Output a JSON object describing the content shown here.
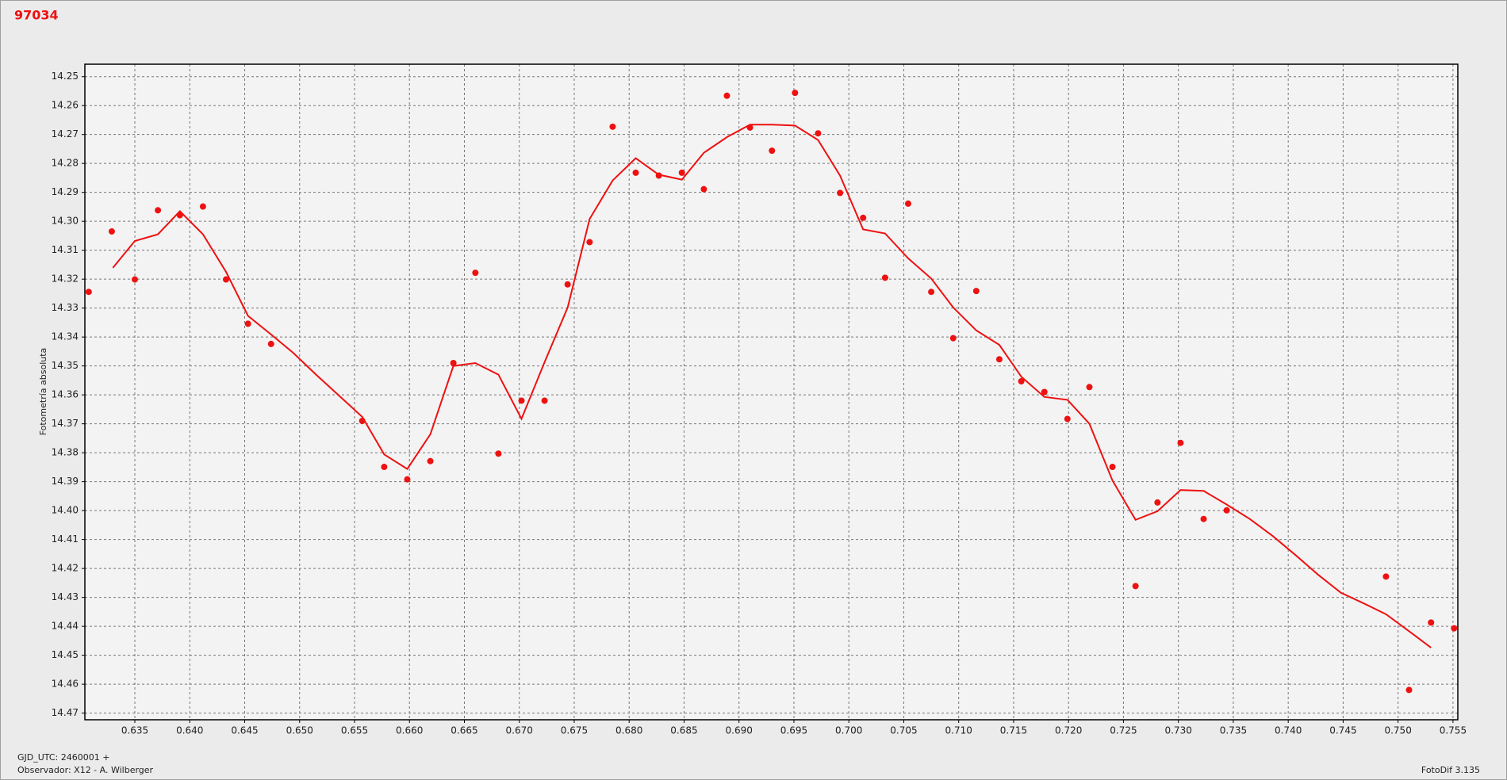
{
  "chart_data": {
    "type": "scatter",
    "title": "97034",
    "ylabel": "Fotometría absoluta",
    "footer": [
      "GJD_UTC: 2460001 +",
      "Observador: X12 - A. Wilberger"
    ],
    "version": "FotoDif 3.135",
    "invert_y": true,
    "grid": true,
    "xlim": [
      0.63045,
      0.75544
    ],
    "ylim": [
      14.2457,
      14.4723
    ],
    "xticks": [
      0.635,
      {
        "value": 0.64,
        "label": "0.640"
      },
      0.645,
      {
        "value": 0.65,
        "label": "0.650"
      },
      0.655,
      {
        "value": 0.66,
        "label": "0.660"
      },
      0.665,
      {
        "value": 0.67,
        "label": "0.670"
      },
      0.675,
      {
        "value": 0.68,
        "label": "0.680"
      },
      0.685,
      {
        "value": 0.69,
        "label": "0.690"
      },
      0.695,
      {
        "value": 0.7,
        "label": "0.700"
      },
      0.705,
      {
        "value": 0.71,
        "label": "0.710"
      },
      0.715,
      {
        "value": 0.72,
        "label": "0.720"
      },
      0.725,
      {
        "value": 0.73,
        "label": "0.730"
      },
      0.735,
      {
        "value": 0.74,
        "label": "0.740"
      },
      0.745,
      {
        "value": 0.75,
        "label": "0.750"
      },
      0.755
    ],
    "yticks": [
      14.25,
      14.26,
      14.27,
      14.28,
      14.29,
      {
        "value": 14.3,
        "label": "14.30"
      },
      14.31,
      14.32,
      14.33,
      14.34,
      14.35,
      14.36,
      14.37,
      14.38,
      14.39,
      {
        "value": 14.4,
        "label": "14.40"
      },
      14.41,
      14.42,
      14.43,
      14.44,
      14.45,
      14.46,
      14.47
    ],
    "series": [
      {
        "style": "markers",
        "color": "#ee1111",
        "x": [
          0.6308,
          0.6329,
          0.635,
          0.6371,
          0.6391,
          0.6412,
          0.6433,
          0.6453,
          0.6474,
          0.6557,
          0.6577,
          0.6598,
          0.6619,
          0.664,
          0.666,
          0.6681,
          0.6702,
          0.6723,
          0.6744,
          0.6764,
          0.6785,
          0.6806,
          0.6827,
          0.6848,
          0.6868,
          0.6889,
          0.691,
          0.693,
          0.6951,
          0.6972,
          0.6992,
          0.7013,
          0.7033,
          0.7054,
          0.7075,
          0.7095,
          0.7116,
          0.7137,
          0.7157,
          0.7178,
          0.7199,
          0.7219,
          0.724,
          0.7261,
          0.7281,
          0.7302,
          0.7323,
          0.7344,
          0.7489,
          0.751,
          0.753,
          0.7551
        ],
        "values": [
          14.3244,
          14.3035,
          14.3201,
          14.2962,
          14.2979,
          14.2949,
          14.3201,
          14.3354,
          14.3424,
          14.369,
          14.3849,
          14.3892,
          14.3829,
          14.349,
          14.3178,
          14.3803,
          14.362,
          14.362,
          14.3218,
          14.3072,
          14.2673,
          14.2832,
          14.2842,
          14.2832,
          14.2889,
          14.2566,
          14.2676,
          14.2756,
          14.2556,
          14.2696,
          14.2902,
          14.2988,
          14.3195,
          14.2939,
          14.3244,
          14.3404,
          14.3241,
          14.3477,
          14.3553,
          14.359,
          14.3683,
          14.3573,
          14.3849,
          14.4261,
          14.3972,
          14.3766,
          14.4029,
          14.3999,
          14.4228,
          14.462,
          14.4387,
          14.4407
        ]
      },
      {
        "style": "line",
        "color": "#ee1111",
        "x": [
          0.633,
          0.635,
          0.6371,
          0.6391,
          0.6412,
          0.6433,
          0.6453,
          0.6474,
          0.6494,
          0.6515,
          0.6536,
          0.6557,
          0.6577,
          0.6598,
          0.6619,
          0.664,
          0.666,
          0.6681,
          0.6702,
          0.6723,
          0.6744,
          0.6764,
          0.6785,
          0.6806,
          0.6827,
          0.6848,
          0.6868,
          0.6889,
          0.691,
          0.693,
          0.6951,
          0.6972,
          0.6992,
          0.7013,
          0.7033,
          0.7054,
          0.7075,
          0.7095,
          0.7116,
          0.7137,
          0.7157,
          0.7178,
          0.7199,
          0.7219,
          0.724,
          0.7261,
          0.7281,
          0.7302,
          0.7323,
          0.7344,
          0.7365,
          0.7386,
          0.7407,
          0.7427,
          0.7448,
          0.7469,
          0.7489,
          0.751,
          0.753
        ],
        "values": [
          14.3161,
          14.3068,
          14.3045,
          14.2965,
          14.3045,
          14.3175,
          14.3327,
          14.3391,
          14.3454,
          14.353,
          14.3603,
          14.3676,
          14.3806,
          14.3856,
          14.3736,
          14.35,
          14.349,
          14.353,
          14.3683,
          14.3487,
          14.3298,
          14.2992,
          14.2859,
          14.2782,
          14.2839,
          14.2856,
          14.2763,
          14.2709,
          14.2666,
          14.2666,
          14.2669,
          14.2719,
          14.2842,
          14.3028,
          14.3042,
          14.3128,
          14.3198,
          14.3298,
          14.3377,
          14.3427,
          14.3537,
          14.3607,
          14.3617,
          14.37,
          14.3896,
          14.4032,
          14.4002,
          14.3929,
          14.3932,
          14.3979,
          14.4029,
          14.4088,
          14.4155,
          14.4221,
          14.4284,
          14.4321,
          14.4358,
          14.4417,
          14.4474
        ]
      }
    ]
  }
}
